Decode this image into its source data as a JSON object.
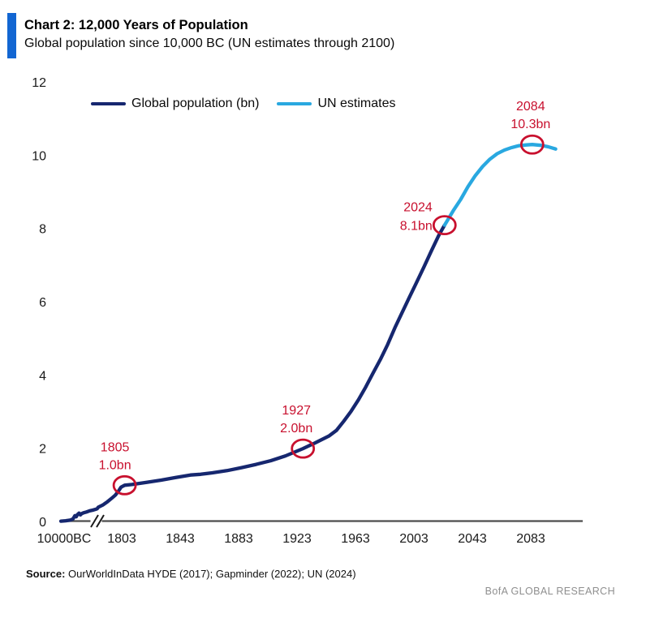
{
  "header": {
    "title": "Chart 2: 12,000 Years of Population",
    "subtitle": "Global population since 10,000 BC (UN estimates through 2100)"
  },
  "colors": {
    "accent_blue": "#1266D2",
    "navy_line": "#16276F",
    "cyan_line": "#29A8E0",
    "annotation_red": "#C8102E",
    "axis_gray": "#4D4D4D",
    "text_dark": "#1A1A1A",
    "brand_gray": "#8F8F8F"
  },
  "chart_data": {
    "type": "line",
    "title": "Chart 2: 12,000 Years of Population",
    "subtitle": "Global population since 10,000 BC (UN estimates through 2100)",
    "ylim": [
      0,
      12
    ],
    "y_ticks": [
      0,
      2,
      4,
      6,
      8,
      10,
      12
    ],
    "x_ticks": [
      "10000BC",
      "1803",
      "1843",
      "1883",
      "1923",
      "1963",
      "2003",
      "2043",
      "2083"
    ],
    "x_axis_break_after_first_tick": true,
    "grid": false,
    "legend_position": "top-left",
    "series": [
      {
        "name": "Global population (bn)",
        "color": "#16276F",
        "points": [
          [
            -10000,
            0.02
          ],
          [
            -8500,
            0.03
          ],
          [
            -7000,
            0.05
          ],
          [
            -6200,
            0.08
          ],
          [
            -5600,
            0.17
          ],
          [
            -5200,
            0.14
          ],
          [
            -4800,
            0.2
          ],
          [
            -4300,
            0.24
          ],
          [
            -3900,
            0.19
          ],
          [
            -3400,
            0.23
          ],
          [
            -2800,
            0.25
          ],
          [
            -2000,
            0.27
          ],
          [
            -1000,
            0.3
          ],
          [
            0,
            0.32
          ],
          [
            800,
            0.34
          ],
          [
            1400,
            0.36
          ],
          [
            1700,
            0.4
          ],
          [
            1720,
            0.46
          ],
          [
            1740,
            0.55
          ],
          [
            1760,
            0.65
          ],
          [
            1775,
            0.73
          ],
          [
            1790,
            0.85
          ],
          [
            1800,
            0.95
          ],
          [
            1805,
            1.0
          ],
          [
            1810,
            1.02
          ],
          [
            1820,
            1.08
          ],
          [
            1830,
            1.14
          ],
          [
            1840,
            1.21
          ],
          [
            1850,
            1.28
          ],
          [
            1857,
            1.3
          ],
          [
            1865,
            1.34
          ],
          [
            1875,
            1.4
          ],
          [
            1885,
            1.48
          ],
          [
            1895,
            1.57
          ],
          [
            1905,
            1.67
          ],
          [
            1915,
            1.8
          ],
          [
            1927,
            2.0
          ],
          [
            1935,
            2.15
          ],
          [
            1945,
            2.35
          ],
          [
            1950,
            2.5
          ],
          [
            1955,
            2.75
          ],
          [
            1960,
            3.02
          ],
          [
            1965,
            3.33
          ],
          [
            1970,
            3.68
          ],
          [
            1975,
            4.06
          ],
          [
            1980,
            4.43
          ],
          [
            1985,
            4.84
          ],
          [
            1990,
            5.3
          ],
          [
            1995,
            5.72
          ],
          [
            2000,
            6.14
          ],
          [
            2005,
            6.55
          ],
          [
            2010,
            6.97
          ],
          [
            2015,
            7.4
          ],
          [
            2020,
            7.82
          ],
          [
            2024,
            8.1
          ]
        ]
      },
      {
        "name": "UN estimates",
        "color": "#29A8E0",
        "points": [
          [
            2024,
            8.1
          ],
          [
            2030,
            8.5
          ],
          [
            2035,
            8.8
          ],
          [
            2040,
            9.15
          ],
          [
            2045,
            9.45
          ],
          [
            2050,
            9.7
          ],
          [
            2055,
            9.9
          ],
          [
            2060,
            10.05
          ],
          [
            2065,
            10.15
          ],
          [
            2070,
            10.22
          ],
          [
            2075,
            10.27
          ],
          [
            2080,
            10.29
          ],
          [
            2084,
            10.3
          ],
          [
            2090,
            10.28
          ],
          [
            2095,
            10.24
          ],
          [
            2100,
            10.18
          ]
        ]
      }
    ],
    "annotations": [
      {
        "year": 1805,
        "value": 1.0,
        "label_line1": "1805",
        "label_line2": "1.0bn",
        "label_position": "above",
        "dx": -12
      },
      {
        "year": 1927,
        "value": 2.0,
        "label_line1": "1927",
        "label_line2": "2.0bn",
        "label_position": "above",
        "dx": -8
      },
      {
        "year": 2024,
        "value": 8.1,
        "label_line1": "2024",
        "label_line2": "8.1bn",
        "label_position": "left",
        "dx": 0
      },
      {
        "year": 2084,
        "value": 10.3,
        "label_line1": "2084",
        "label_line2": "10.3bn",
        "label_position": "above",
        "dx": -2
      }
    ],
    "annotation_color": "#C8102E",
    "axis_color": "#4D4D4D"
  },
  "footer": {
    "source_label": "Source:",
    "source_text": " OurWorldInData HYDE (2017); Gapminder (2022); UN (2024)",
    "brand": "BofA GLOBAL RESEARCH"
  }
}
